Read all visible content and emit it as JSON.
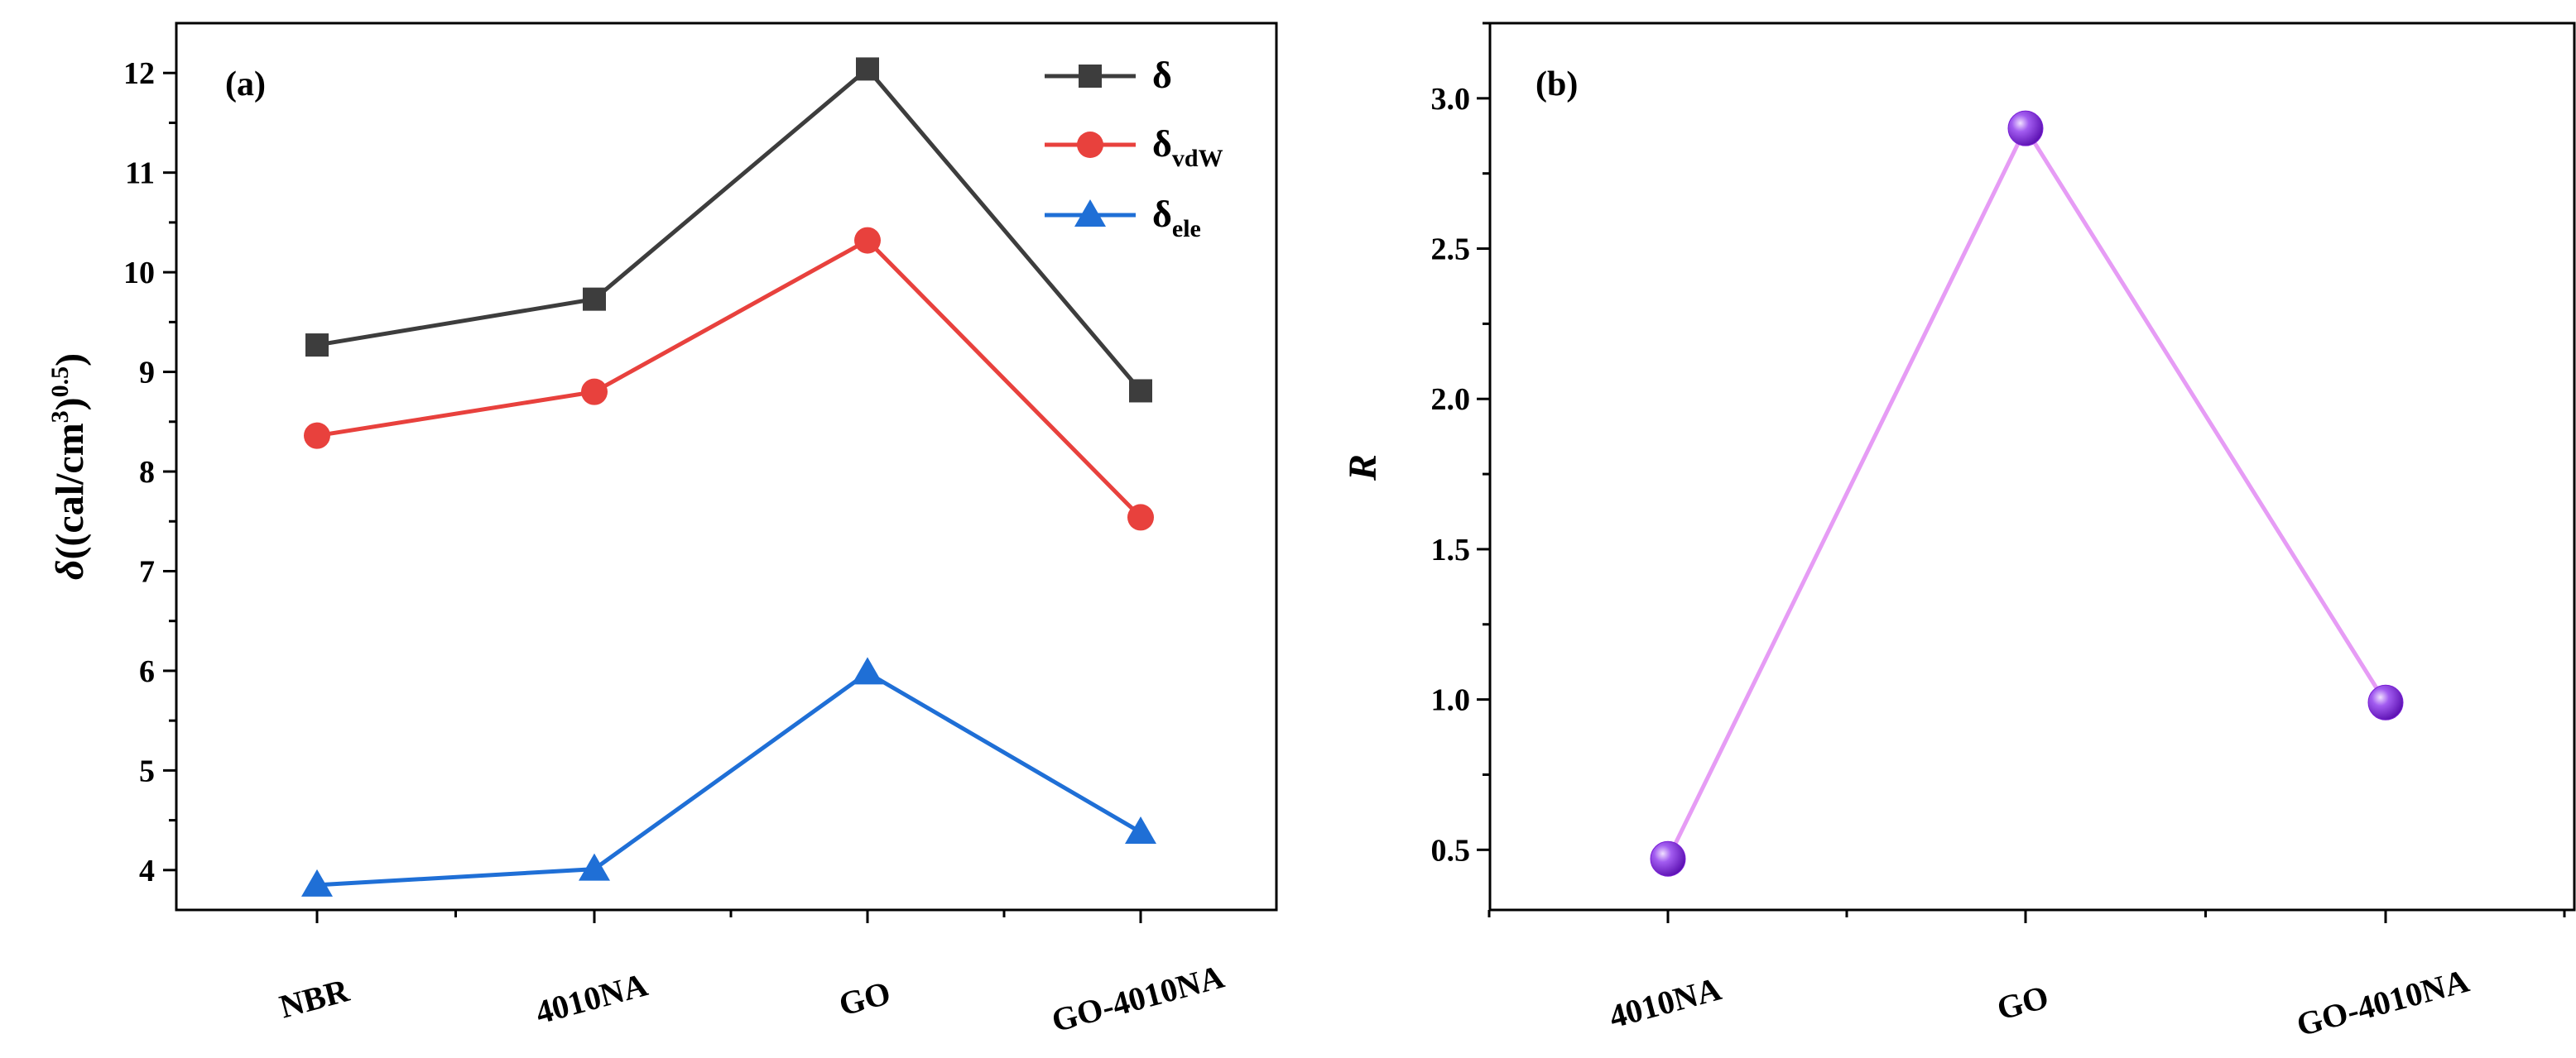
{
  "chart_data": [
    {
      "type": "line",
      "panel_label": "(a)",
      "ylabel": "δ((cal/cm3)0.5)",
      "ylabel_parts": {
        "symbol": "δ",
        "open": "((cal/cm",
        "sup1": "3",
        "close": ")",
        "sup2": "0.5",
        "end": ")"
      },
      "categories": [
        "NBR",
        "4010NA",
        "GO",
        "GO-4010NA"
      ],
      "ylim": [
        3.6,
        12.5
      ],
      "yticks": [
        4,
        5,
        6,
        7,
        8,
        9,
        10,
        11,
        12
      ],
      "series": [
        {
          "name": "δ",
          "legend_main": "δ",
          "legend_sub": "",
          "color": "#3d3d3d",
          "marker": "square",
          "values": [
            9.27,
            9.73,
            12.04,
            8.81
          ]
        },
        {
          "name": "δvdW",
          "legend_main": "δ",
          "legend_sub": "vdW",
          "color": "#e8413d",
          "marker": "circle",
          "values": [
            8.36,
            8.8,
            10.32,
            7.54
          ]
        },
        {
          "name": "δele",
          "legend_main": "δ",
          "legend_sub": "ele",
          "color": "#1f6fd6",
          "marker": "triangle",
          "values": [
            3.85,
            4.01,
            5.98,
            4.38
          ]
        }
      ],
      "legend_position": "top-right",
      "grid": false
    },
    {
      "type": "line",
      "panel_label": "(b)",
      "ylabel": "R",
      "categories": [
        "4010NA",
        "GO",
        "GO-4010NA"
      ],
      "ylim": [
        0.3,
        3.25
      ],
      "yticks": [
        "0.5",
        "1.0",
        "1.5",
        "2.0",
        "2.5",
        "3.0"
      ],
      "series": [
        {
          "color": "#e69cf5",
          "marker_color": "#7a1fd6",
          "marker": "sphere",
          "values": [
            0.47,
            2.9,
            0.99
          ]
        }
      ],
      "grid": false
    }
  ]
}
